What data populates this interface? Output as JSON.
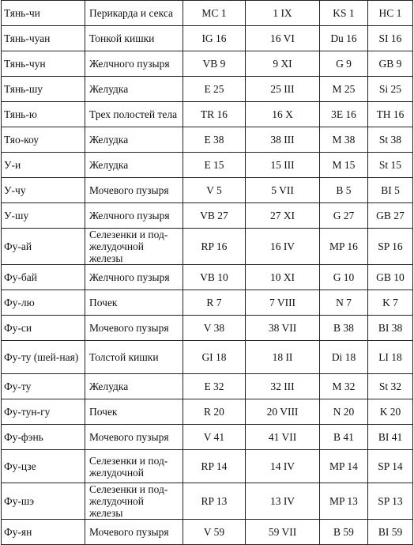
{
  "table": {
    "rows": [
      {
        "point": "Тянь-чи",
        "organ": "Перикарда и секса",
        "c1": "MC 1",
        "c2": "1 IX",
        "c3": "KS 1",
        "c4": "HC 1"
      },
      {
        "point": "Тянь-чуан",
        "organ": "Тонкой кишки",
        "c1": "IG 16",
        "c2": "16 VI",
        "c3": "Du 16",
        "c4": "SI 16"
      },
      {
        "point": "Тянь-чун",
        "organ": "Желчного пузыря",
        "c1": "VB 9",
        "c2": "9 XI",
        "c3": "G 9",
        "c4": "GB 9"
      },
      {
        "point": "Тянь-шу",
        "organ": "Желудка",
        "c1": "E 25",
        "c2": "25 III",
        "c3": "M 25",
        "c4": "Si 25"
      },
      {
        "point": "Тянь-ю",
        "organ": "Трех полостей тела",
        "c1": "TR 16",
        "c2": "16 X",
        "c3": "3E 16",
        "c4": "TH 16"
      },
      {
        "point": "Тяо-коу",
        "organ": "Желудка",
        "c1": "E 38",
        "c2": "38 III",
        "c3": "M 38",
        "c4": "St 38"
      },
      {
        "point": "У-и",
        "organ": "Желудка",
        "c1": "E 15",
        "c2": "15 III",
        "c3": "M 15",
        "c4": "St 15"
      },
      {
        "point": "У-чу",
        "organ": "Мочевого пузыря",
        "c1": "V 5",
        "c2": "5 VII",
        "c3": "B 5",
        "c4": "BI 5"
      },
      {
        "point": "У-шу",
        "organ": "Желчного пузыря",
        "c1": "VB 27",
        "c2": "27 XI",
        "c3": "G 27",
        "c4": "GB 27"
      },
      {
        "point": "Фу-ай",
        "organ": "Селезенки и под-желудочной железы",
        "c1": "RP 16",
        "c2": "16 IV",
        "c3": "MP 16",
        "c4": "SP 16"
      },
      {
        "point": "Фу-бай",
        "organ": "Желчного пузыря",
        "c1": "VB 10",
        "c2": "10 XI",
        "c3": "G 10",
        "c4": "GB 10"
      },
      {
        "point": "Фу-лю",
        "organ": "Почек",
        "c1": "R 7",
        "c2": "7 VIII",
        "c3": "N 7",
        "c4": "K 7"
      },
      {
        "point": "Фу-си",
        "organ": "Мочевого пузыря",
        "c1": "V 38",
        "c2": "38 VII",
        "c3": "B 38",
        "c4": "BI 38"
      },
      {
        "point": "Фу-ту (шей-ная)",
        "organ": "Толстой кишки",
        "c1": "GI 18",
        "c2": "18 II",
        "c3": "Di 18",
        "c4": "LI 18"
      },
      {
        "point": "Фу-ту",
        "organ": "Желудка",
        "c1": "E 32",
        "c2": "32 III",
        "c3": "M 32",
        "c4": "St 32"
      },
      {
        "point": "Фу-тун-гу",
        "organ": "Почек",
        "c1": "R 20",
        "c2": "20 VIII",
        "c3": "N 20",
        "c4": "K 20"
      },
      {
        "point": "Фу-фэнь",
        "organ": "Мочевого пузыря",
        "c1": "V 41",
        "c2": "41 VII",
        "c3": "B 41",
        "c4": "BI 41"
      },
      {
        "point": "Фу-цзе",
        "organ": "Селезенки и под-желудочной",
        "c1": "RP 14",
        "c2": "14 IV",
        "c3": "MP 14",
        "c4": "SP 14"
      },
      {
        "point": "Фу-шэ",
        "organ": "Селезенки и под-желудочной железы",
        "c1": "RP 13",
        "c2": "13 IV",
        "c3": "MP 13",
        "c4": "SP 13"
      },
      {
        "point": "Фу-ян",
        "organ": "Мочевого пузыря",
        "c1": "V 59",
        "c2": "59 VII",
        "c3": "B 59",
        "c4": "BI 59"
      }
    ]
  }
}
